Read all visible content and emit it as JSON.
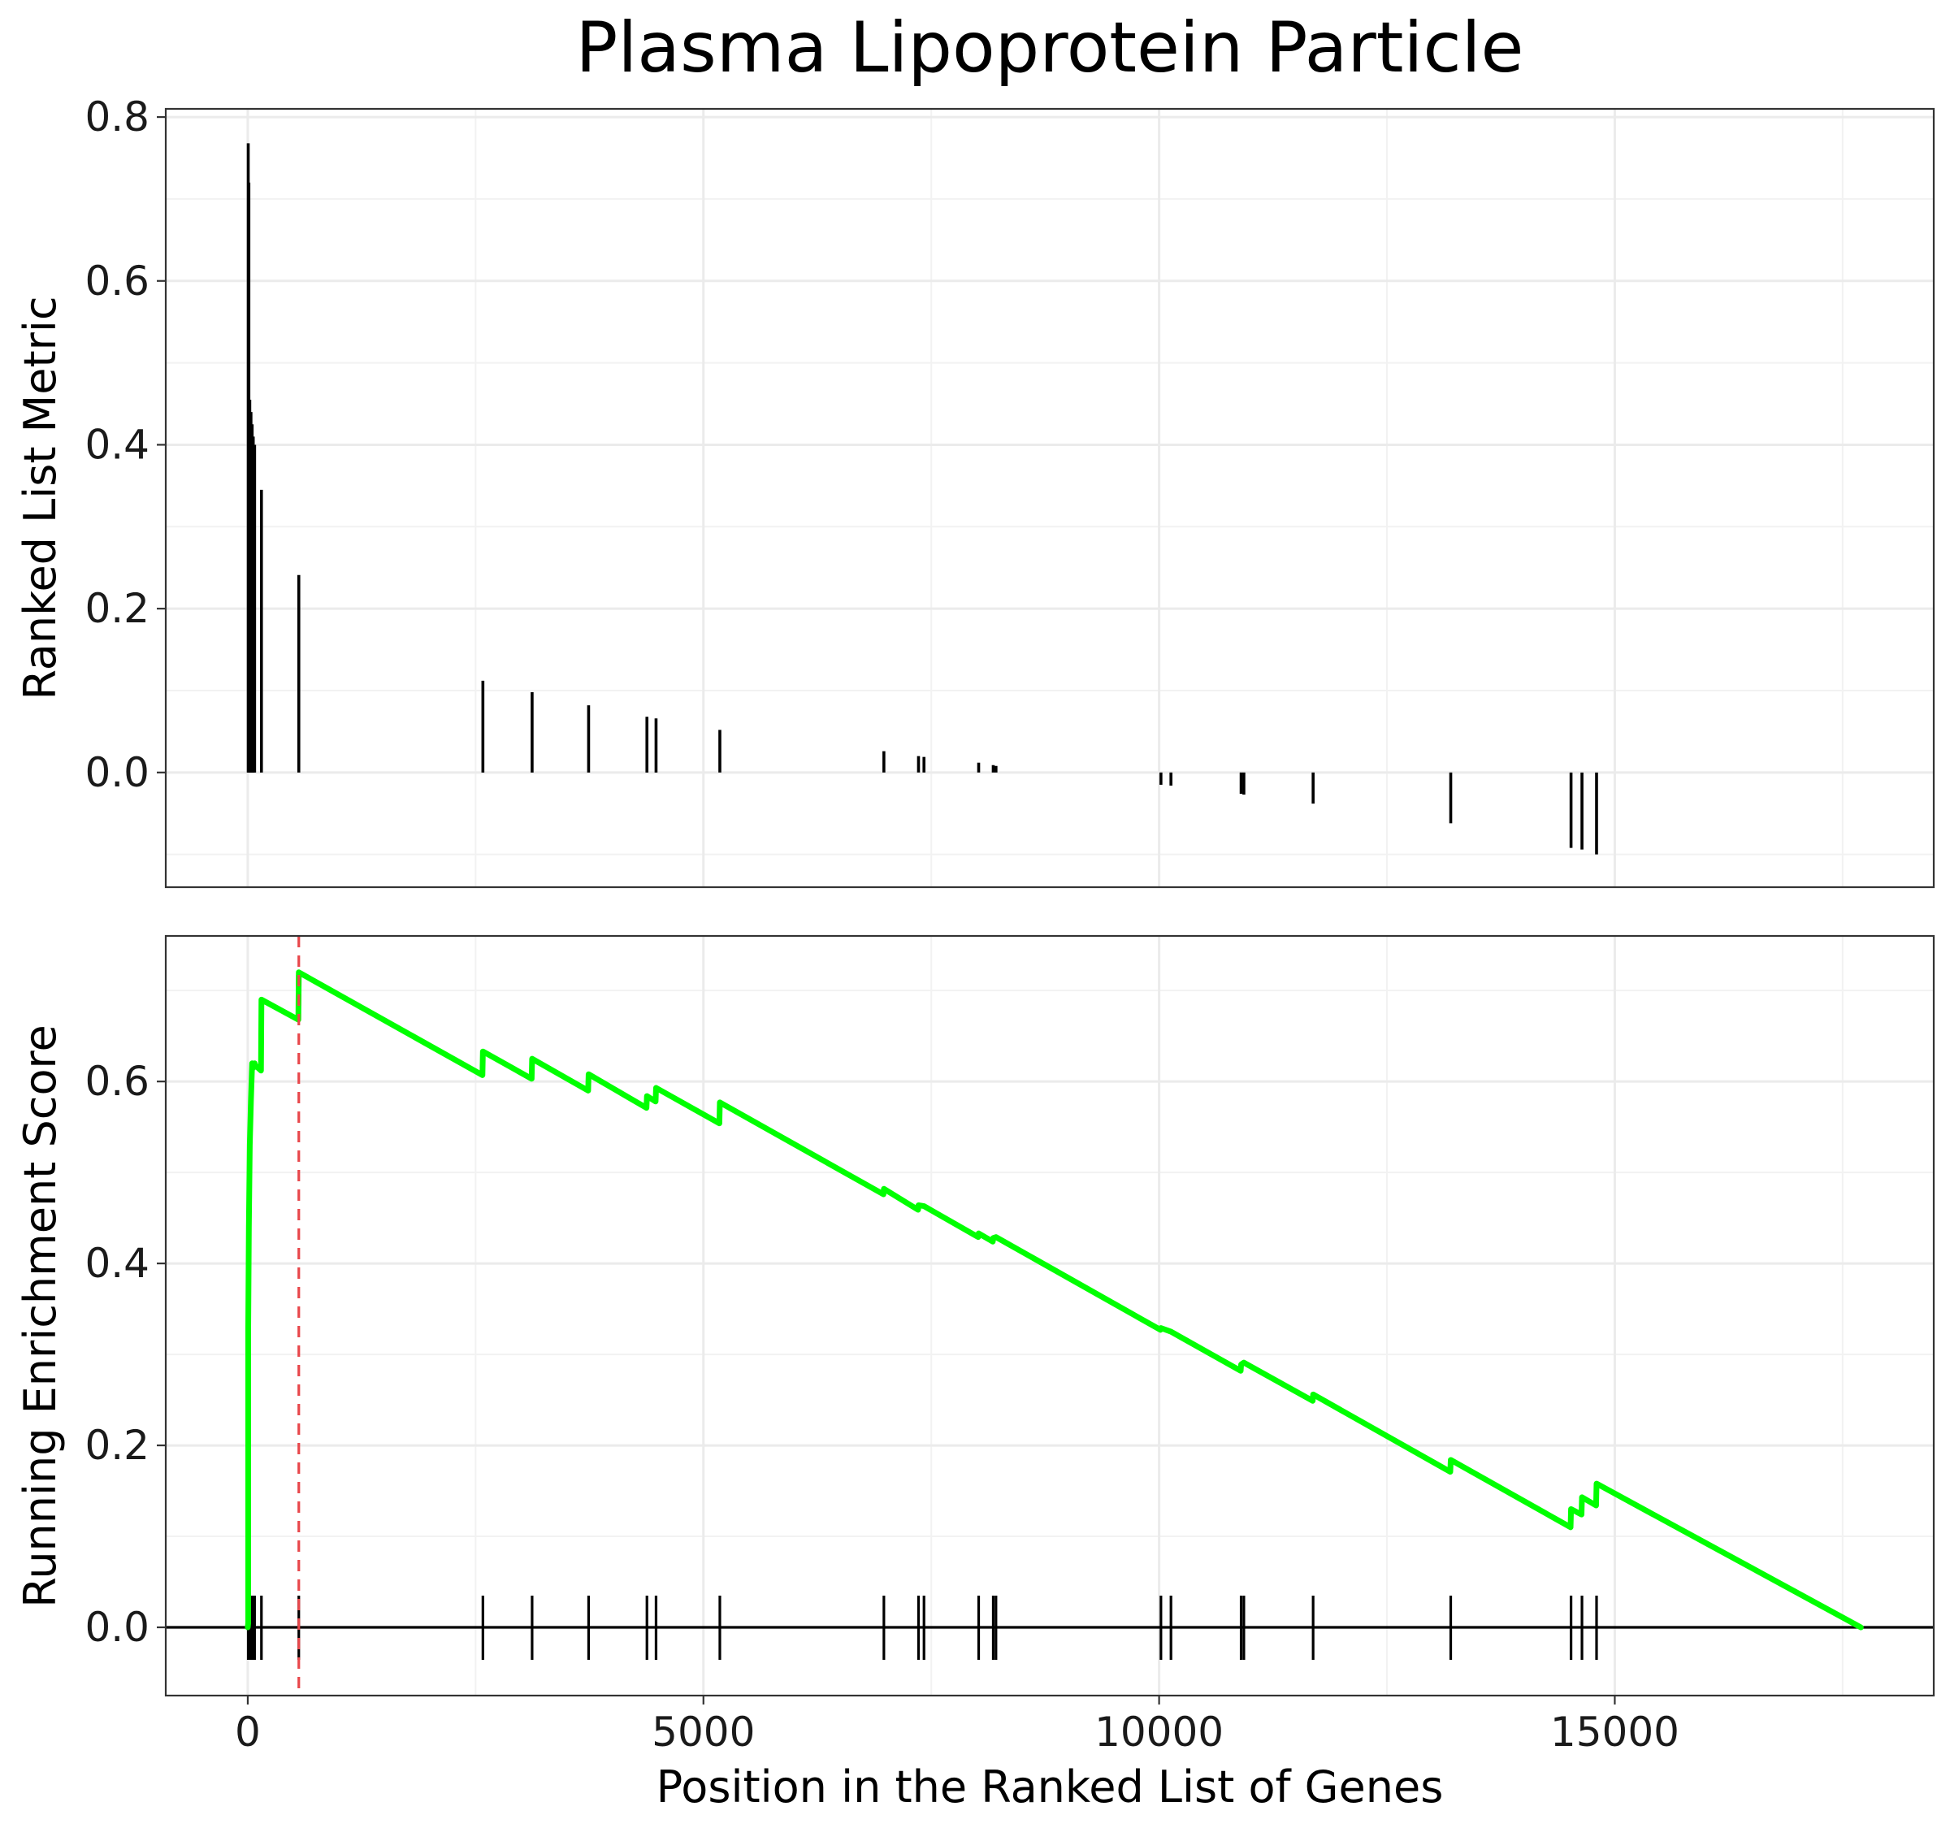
{
  "chart_data": [
    {
      "type": "bar",
      "title": "Plasma Lipoprotein Particle",
      "xlabel": "",
      "ylabel": "Ranked List Metric",
      "xlim": [
        -900,
        18500
      ],
      "ylim": [
        -0.14,
        0.81
      ],
      "y_ticks": [
        "0.0",
        "0.2",
        "0.4",
        "0.6",
        "0.8"
      ],
      "y_tick_values": [
        0.0,
        0.2,
        0.4,
        0.6,
        0.8
      ],
      "grid": true,
      "x": [
        5,
        12,
        22,
        35,
        48,
        60,
        75,
        150,
        560,
        2580,
        3120,
        3740,
        4380,
        4480,
        5180,
        6980,
        7360,
        7420,
        8020,
        8180,
        8210,
        10020,
        10130,
        10900,
        10930,
        11690,
        13200,
        14520,
        14640,
        14800
      ],
      "values": [
        0.768,
        0.72,
        0.455,
        0.44,
        0.425,
        0.41,
        0.4,
        0.345,
        0.241,
        0.112,
        0.098,
        0.082,
        0.068,
        0.066,
        0.052,
        0.026,
        0.02,
        0.019,
        0.012,
        0.009,
        0.008,
        -0.015,
        -0.016,
        -0.026,
        -0.027,
        -0.038,
        -0.062,
        -0.092,
        -0.094,
        -0.1
      ]
    },
    {
      "type": "line",
      "xlabel": "Position in the Ranked List of Genes",
      "ylabel": "Running Enrichment Score",
      "xlim": [
        -900,
        18500
      ],
      "ylim": [
        -0.075,
        0.76
      ],
      "x_ticks": [
        "0",
        "5000",
        "10000",
        "15000"
      ],
      "x_tick_values": [
        0,
        5000,
        10000,
        15000
      ],
      "y_ticks": [
        "0.0",
        "0.2",
        "0.4",
        "0.6"
      ],
      "y_tick_values": [
        0.0,
        0.2,
        0.4,
        0.6
      ],
      "grid": true,
      "line_color": "#00ff00",
      "peak_line_color": "#e8474b",
      "peak_x": 560,
      "series": [
        {
          "x": [
            0,
            5,
            5,
            12,
            22,
            35,
            48,
            60,
            75,
            80,
            145,
            150,
            555,
            560,
            2575,
            2580,
            3115,
            3120,
            3735,
            3740,
            4375,
            4380,
            4475,
            4480,
            5175,
            5180,
            6975,
            6980,
            7355,
            7360,
            7420,
            8015,
            8020,
            8175,
            8180,
            8210,
            10015,
            10020,
            10130,
            10895,
            10900,
            10930,
            11685,
            11690,
            13195,
            13200,
            14515,
            14520,
            14635,
            14640,
            14795,
            14800,
            17700
          ],
          "values": [
            0,
            0.005,
            0.33,
            0.44,
            0.53,
            0.58,
            0.62,
            0.615,
            0.62,
            0.618,
            0.612,
            0.69,
            0.668,
            0.72,
            0.607,
            0.633,
            0.603,
            0.625,
            0.59,
            0.608,
            0.571,
            0.584,
            0.578,
            0.593,
            0.554,
            0.577,
            0.476,
            0.482,
            0.459,
            0.464,
            0.463,
            0.429,
            0.433,
            0.424,
            0.428,
            0.429,
            0.327,
            0.329,
            0.325,
            0.282,
            0.289,
            0.291,
            0.249,
            0.256,
            0.171,
            0.184,
            0.11,
            0.13,
            0.124,
            0.143,
            0.134,
            0.158,
            0.0
          ]
        }
      ],
      "hits_x": [
        5,
        12,
        22,
        35,
        48,
        60,
        75,
        150,
        560,
        2580,
        3120,
        3740,
        4380,
        4480,
        5180,
        6980,
        7360,
        7420,
        8020,
        8180,
        8210,
        10020,
        10130,
        10900,
        10930,
        11690,
        13200,
        14520,
        14640,
        14800
      ]
    }
  ]
}
